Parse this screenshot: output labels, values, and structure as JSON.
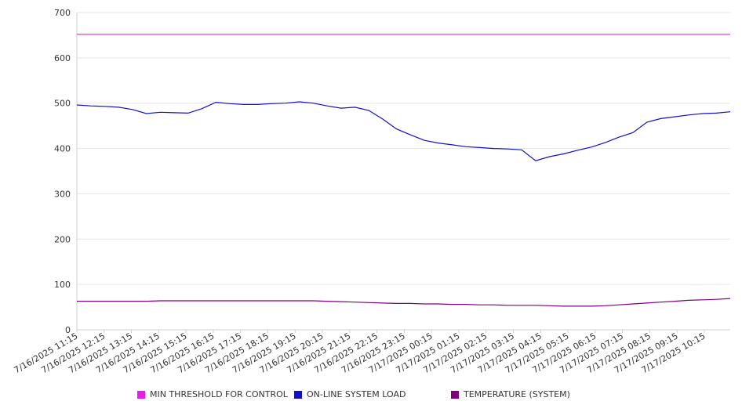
{
  "chart_data": {
    "type": "line",
    "title": "",
    "xlabel": "",
    "ylabel": "",
    "ylim": [
      0,
      700
    ],
    "yticks": [
      0,
      100,
      200,
      300,
      400,
      500,
      600,
      700
    ],
    "grid": true,
    "legend_placement": "bottom",
    "x_tick_labels": [
      "7/16/2025 11:15",
      "7/16/2025 12:15",
      "7/16/2025 13:15",
      "7/16/2025 14:15",
      "7/16/2025 15:15",
      "7/16/2025 16:15",
      "7/16/2025 17:15",
      "7/16/2025 18:15",
      "7/16/2025 19:15",
      "7/16/2025 20:15",
      "7/16/2025 21:15",
      "7/16/2025 22:15",
      "7/16/2025 23:15",
      "7/17/2025 00:15",
      "7/17/2025 01:15",
      "7/17/2025 02:15",
      "7/17/2025 03:15",
      "7/17/2025 04:15",
      "7/17/2025 05:15",
      "7/17/2025 06:15",
      "7/17/2025 07:15",
      "7/17/2025 08:15",
      "7/17/2025 09:15",
      "7/17/2025 10:15"
    ],
    "x": [
      "7/16/2025 11:15",
      "7/16/2025 11:45",
      "7/16/2025 12:15",
      "7/16/2025 12:45",
      "7/16/2025 13:15",
      "7/16/2025 13:45",
      "7/16/2025 14:15",
      "7/16/2025 14:45",
      "7/16/2025 15:15",
      "7/16/2025 15:45",
      "7/16/2025 16:15",
      "7/16/2025 16:45",
      "7/16/2025 17:15",
      "7/16/2025 17:45",
      "7/16/2025 18:15",
      "7/16/2025 18:45",
      "7/16/2025 19:15",
      "7/16/2025 19:45",
      "7/16/2025 20:15",
      "7/16/2025 20:45",
      "7/16/2025 21:15",
      "7/16/2025 21:45",
      "7/16/2025 22:15",
      "7/16/2025 22:45",
      "7/16/2025 23:15",
      "7/16/2025 23:45",
      "7/17/2025 00:15",
      "7/17/2025 00:45",
      "7/17/2025 01:15",
      "7/17/2025 01:45",
      "7/17/2025 02:15",
      "7/17/2025 02:45",
      "7/17/2025 03:15",
      "7/17/2025 03:45",
      "7/17/2025 04:15",
      "7/17/2025 04:45",
      "7/17/2025 05:15",
      "7/17/2025 05:45",
      "7/17/2025 06:15",
      "7/17/2025 06:45",
      "7/17/2025 07:15",
      "7/17/2025 07:45",
      "7/17/2025 08:15",
      "7/17/2025 08:45",
      "7/17/2025 09:15",
      "7/17/2025 09:45",
      "7/17/2025 10:15",
      "7/17/2025 10:45"
    ],
    "series": [
      {
        "name": "MIN THRESHOLD FOR CONTROL",
        "color": "#e81ce8",
        "values": [
          652,
          652,
          652,
          652,
          652,
          652,
          652,
          652,
          652,
          652,
          652,
          652,
          652,
          652,
          652,
          652,
          652,
          652,
          652,
          652,
          652,
          652,
          652,
          652,
          652,
          652,
          652,
          652,
          652,
          652,
          652,
          652,
          652,
          652,
          652,
          652,
          652,
          652,
          652,
          652,
          652,
          652,
          652,
          652,
          652,
          652,
          652,
          652
        ]
      },
      {
        "name": "ON-LINE SYSTEM LOAD",
        "color": "#1010cc",
        "values": [
          496,
          494,
          493,
          491,
          486,
          477,
          480,
          479,
          478,
          488,
          502,
          499,
          497,
          497,
          499,
          500,
          503,
          500,
          494,
          489,
          491,
          484,
          465,
          443,
          430,
          418,
          412,
          408,
          404,
          402,
          400,
          399,
          397,
          373,
          382,
          388,
          396,
          403,
          413,
          425,
          435,
          458,
          466,
          470,
          474,
          477,
          478,
          481
        ]
      },
      {
        "name": "TEMPERATURE (SYSTEM)",
        "color": "#800080",
        "values": [
          63,
          63,
          63,
          63,
          63,
          63,
          64,
          64,
          64,
          64,
          64,
          64,
          64,
          64,
          64,
          64,
          64,
          64,
          63,
          62,
          61,
          60,
          59,
          58,
          58,
          57,
          57,
          56,
          56,
          55,
          55,
          54,
          54,
          54,
          53,
          52,
          52,
          52,
          53,
          55,
          57,
          59,
          61,
          63,
          65,
          66,
          67,
          69
        ]
      }
    ]
  }
}
